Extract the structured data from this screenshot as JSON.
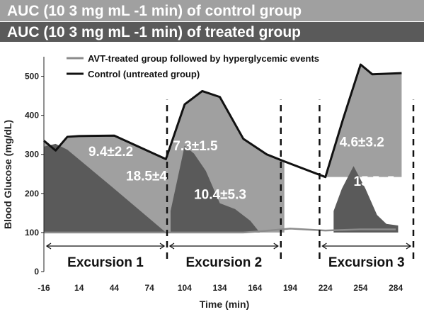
{
  "header": {
    "control_band": "AUC (10 3 mg mL -1 min) of control group",
    "treated_band": "AUC (10 3 mg mL -1 min) of treated  group",
    "control_color": "#a0a0a0",
    "treated_color": "#5a5a5a"
  },
  "chart_data": {
    "type": "area",
    "xlabel": "Time (min)",
    "ylabel": "Blood Glucose (mg/dL)",
    "xlim": [
      -16,
      299
    ],
    "ylim": [
      0,
      550
    ],
    "xticks": [
      -16,
      14,
      44,
      74,
      104,
      134,
      164,
      194,
      224,
      254,
      284
    ],
    "yticks": [
      0,
      100,
      200,
      300,
      400,
      500
    ],
    "legend": {
      "placement": "top",
      "entries": [
        {
          "label": "AVT-treated group followed by hyperglycemic events",
          "color": "#8c8c8c"
        },
        {
          "label": "Control (untreated group)",
          "color": "#111111"
        }
      ]
    },
    "series": [
      {
        "name": "AVT-treated group followed by hyperglycemic events",
        "color": "#8c8c8c",
        "x": [
          -16,
          -6,
          4,
          14,
          44,
          88,
          100,
          104,
          110,
          118,
          124,
          134,
          144,
          154,
          164,
          194,
          224,
          254,
          284
        ],
        "y": [
          100,
          100,
          100,
          100,
          100,
          100,
          100,
          100,
          100,
          100,
          100,
          100,
          100,
          100,
          102,
          110,
          105,
          108,
          108
        ]
      },
      {
        "name": "Control (untreated group)",
        "color": "#111111",
        "x": [
          -16,
          -6,
          4,
          14,
          44,
          88,
          104,
          119,
          134,
          154,
          174,
          189,
          224,
          239,
          254,
          264,
          289
        ],
        "y": [
          335,
          310,
          345,
          347,
          348,
          288,
          428,
          462,
          447,
          340,
          300,
          282,
          242,
          390,
          530,
          505,
          508
        ]
      }
    ],
    "control_excursion_areas": [
      {
        "x": [
          -16,
          -6,
          4,
          14,
          44,
          88
        ],
        "y": [
          335,
          310,
          345,
          347,
          348,
          288
        ]
      },
      {
        "x": [
          88,
          104,
          119,
          134,
          154,
          174,
          189
        ],
        "y": [
          288,
          428,
          462,
          447,
          340,
          300,
          282
        ]
      },
      {
        "x": [
          224,
          239,
          254,
          264,
          289
        ],
        "y": [
          242,
          390,
          530,
          505,
          508
        ]
      }
    ],
    "treated_excursion_areas": [
      {
        "x": [
          -16,
          -6,
          4,
          44,
          88
        ],
        "y": [
          320,
          327,
          312,
          212,
          100
        ]
      },
      {
        "x": [
          92,
          104,
          112,
          122,
          134,
          147,
          160,
          168
        ],
        "y": [
          155,
          322,
          302,
          258,
          175,
          160,
          130,
          100
        ]
      },
      {
        "x": [
          231,
          238,
          248,
          258,
          268,
          276,
          286
        ],
        "y": [
          155,
          212,
          270,
          213,
          145,
          122,
          118
        ]
      }
    ],
    "auc_labels": [
      {
        "text": "18.5±4",
        "group": "control",
        "excursion": 1
      },
      {
        "text": "9.4±2.2",
        "group": "treated",
        "excursion": 1
      },
      {
        "text": "10.4±5.3",
        "group": "control",
        "excursion": 2
      },
      {
        "text": "7.3±1.5",
        "group": "treated",
        "excursion": 2
      },
      {
        "text": "15.5±5",
        "group": "control",
        "excursion": 3
      },
      {
        "text": "4.6±3.2",
        "group": "treated",
        "excursion": 3
      }
    ],
    "excursions": [
      {
        "label": "Excursion 1",
        "start": -16,
        "end": 89
      },
      {
        "label": "Excursion 2",
        "start": 89,
        "end": 186
      },
      {
        "label": "Excursion 3",
        "start": 219,
        "end": 299
      }
    ]
  }
}
